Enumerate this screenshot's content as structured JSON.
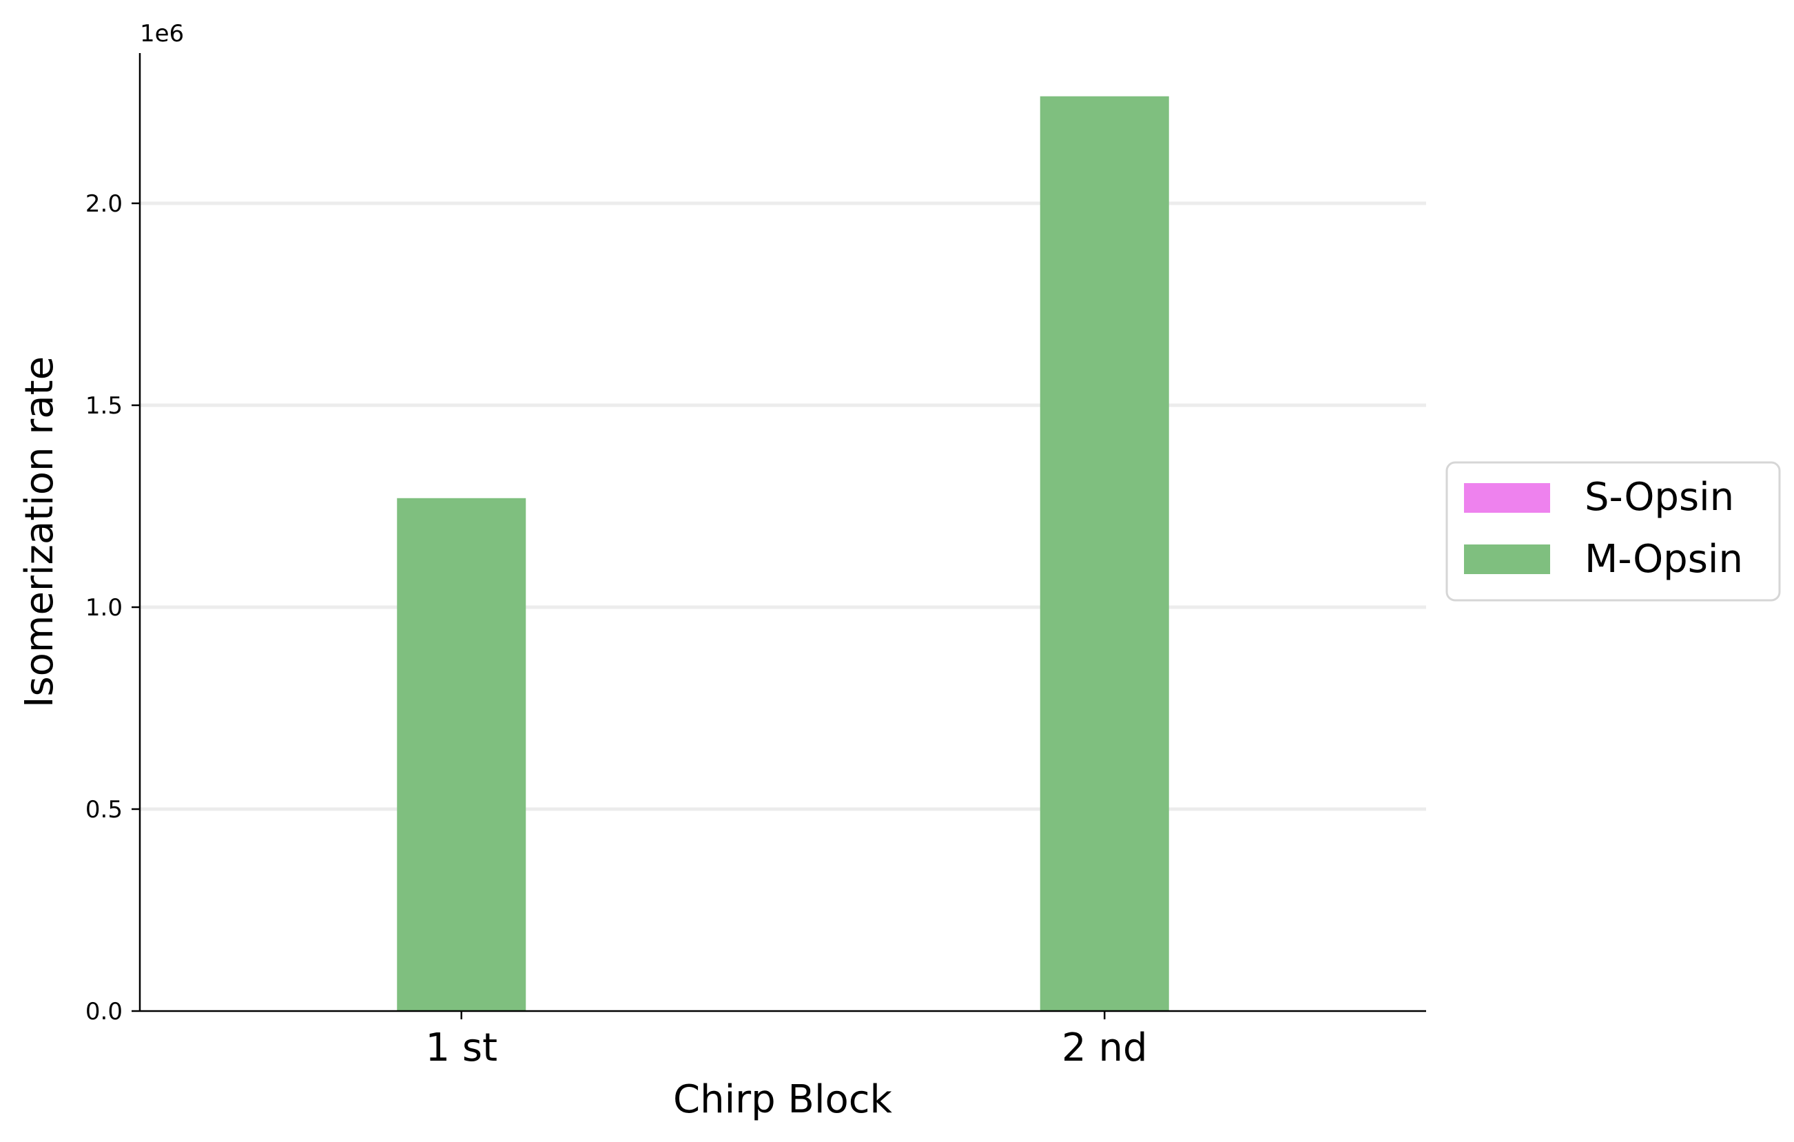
{
  "chart_data": {
    "type": "bar",
    "categories": [
      "1 st",
      "2 nd"
    ],
    "series": [
      {
        "name": "S-Opsin",
        "values": [
          0,
          0
        ],
        "color": "#ee82ee"
      },
      {
        "name": "M-Opsin",
        "values": [
          1270000,
          2265000
        ],
        "color": "#7fbf7f"
      }
    ],
    "xlabel": "Chirp Block",
    "ylabel": "Isomerization rate",
    "y_scale_label": "1e6",
    "ylim": [
      0,
      2385000
    ],
    "yticks": [
      0,
      500000,
      1000000,
      1500000,
      2000000
    ],
    "ytick_labels": [
      "0.0",
      "0.5",
      "1.0",
      "1.5",
      "2.0"
    ],
    "grid": "horizontal",
    "legend_position": "right"
  }
}
